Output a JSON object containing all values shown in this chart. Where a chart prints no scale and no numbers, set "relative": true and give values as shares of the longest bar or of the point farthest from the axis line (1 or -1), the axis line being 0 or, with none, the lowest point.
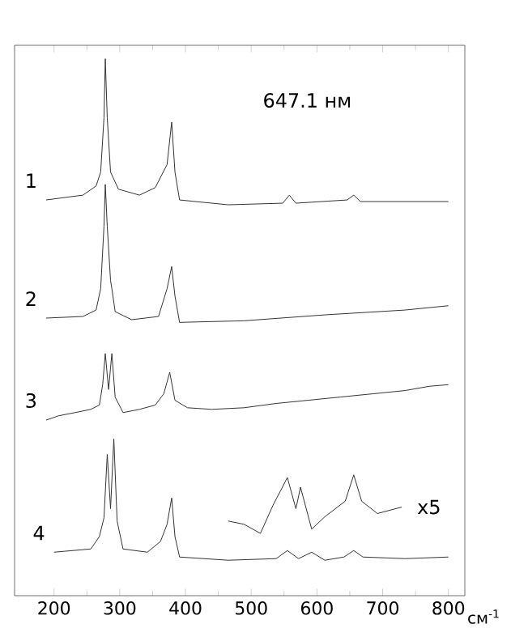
{
  "chart_data": {
    "type": "line",
    "relative": true,
    "xlabel": "см$^{-1}$",
    "xlim": [
      140,
      825
    ],
    "xticks": [
      200,
      300,
      400,
      500,
      600,
      700,
      800
    ],
    "annotations": [
      "647.1 нм",
      {
        "text": "x5",
        "x": 729,
        "y": 0.165
      }
    ],
    "series": [
      {
        "name": "1",
        "color": "#333333",
        "x": [
          188,
          244,
          264,
          271,
          276,
          278,
          281,
          286,
          298,
          330,
          354,
          372,
          379,
          384,
          391,
          465,
          548,
          558,
          568,
          646,
          656,
          666,
          800
        ],
        "values": [
          0.737,
          0.746,
          0.763,
          0.789,
          0.89,
          1,
          0.89,
          0.789,
          0.757,
          0.746,
          0.76,
          0.803,
          0.882,
          0.789,
          0.737,
          0.728,
          0.731,
          0.746,
          0.731,
          0.737,
          0.746,
          0.734,
          0.734
        ]
      },
      {
        "name": "2",
        "color": "#333333",
        "x": [
          188,
          244,
          264,
          271,
          276,
          278,
          281,
          286,
          288,
          293,
          318,
          359,
          372,
          379,
          384,
          391,
          489,
          612,
          734,
          800
        ],
        "values": [
          0.517,
          0.52,
          0.532,
          0.572,
          0.688,
          0.766,
          0.688,
          0.587,
          0.572,
          0.529,
          0.514,
          0.52,
          0.572,
          0.613,
          0.558,
          0.509,
          0.512,
          0.523,
          0.532,
          0.54
        ]
      },
      {
        "name": "3",
        "color": "#333333",
        "x": [
          188,
          207,
          232,
          256,
          269,
          274,
          278,
          283,
          288,
          293,
          305,
          330,
          354,
          367,
          376,
          384,
          403,
          440,
          489,
          538,
          587,
          636,
          685,
          734,
          771,
          800
        ],
        "values": [
          0.327,
          0.335,
          0.341,
          0.347,
          0.355,
          0.393,
          0.451,
          0.384,
          0.451,
          0.37,
          0.341,
          0.347,
          0.355,
          0.376,
          0.416,
          0.364,
          0.35,
          0.347,
          0.35,
          0.358,
          0.364,
          0.37,
          0.376,
          0.382,
          0.39,
          0.393
        ]
      },
      {
        "name": "4",
        "color": "#333333",
        "x": [
          200,
          256,
          269,
          276,
          281,
          286,
          291,
          296,
          305,
          342,
          362,
          372,
          379,
          384,
          391,
          465,
          538,
          555,
          572,
          592,
          612,
          641,
          656,
          670,
          734,
          800
        ],
        "values": [
          0.081,
          0.087,
          0.11,
          0.145,
          0.263,
          0.162,
          0.292,
          0.139,
          0.087,
          0.081,
          0.101,
          0.133,
          0.182,
          0.11,
          0.072,
          0.066,
          0.069,
          0.084,
          0.069,
          0.081,
          0.066,
          0.072,
          0.084,
          0.072,
          0.069,
          0.072
        ]
      },
      {
        "color": "#333333",
        "x": [
          465,
          489,
          514,
          533,
          555,
          568,
          575,
          592,
          612,
          643,
          656,
          668,
          692,
          729
        ],
        "values": [
          0.139,
          0.133,
          0.116,
          0.168,
          0.22,
          0.162,
          0.202,
          0.124,
          0.147,
          0.176,
          0.225,
          0.176,
          0.153,
          0.165
        ]
      }
    ]
  }
}
